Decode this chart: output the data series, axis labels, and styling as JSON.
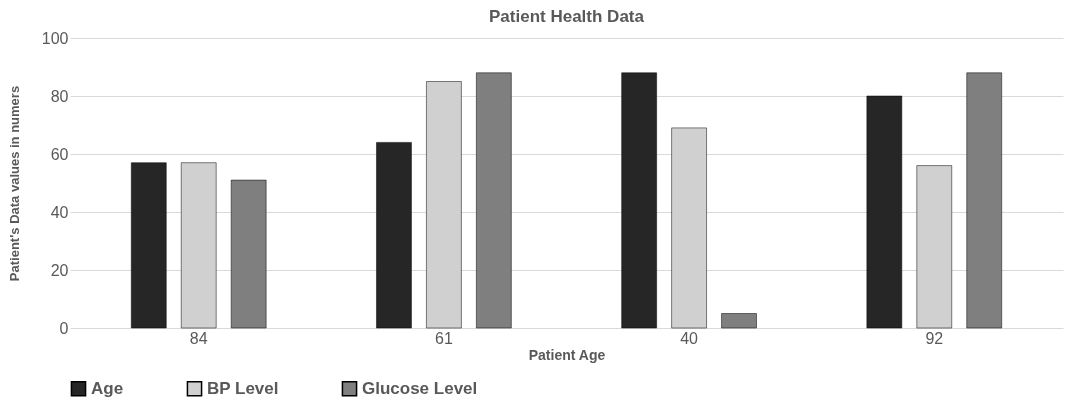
{
  "chart_data": {
    "type": "bar",
    "title": "Patient Health Data",
    "xlabel": "Patient Age",
    "ylabel": "Patient's Data  values in numers",
    "categories": [
      "84",
      "61",
      "40",
      "92"
    ],
    "series": [
      {
        "name": "Age",
        "color": "#262626",
        "values": [
          57,
          64,
          88,
          80
        ]
      },
      {
        "name": "BP Level",
        "color": "#d0d0d0",
        "values": [
          57,
          85,
          69,
          56
        ]
      },
      {
        "name": "Glucose Level",
        "color": "#7f7f7f",
        "values": [
          51,
          88,
          5,
          88
        ]
      }
    ],
    "ylim": [
      0,
      100
    ],
    "yticks": [
      0,
      20,
      40,
      60,
      80,
      100
    ],
    "grid": "y",
    "legend": "bottom"
  }
}
